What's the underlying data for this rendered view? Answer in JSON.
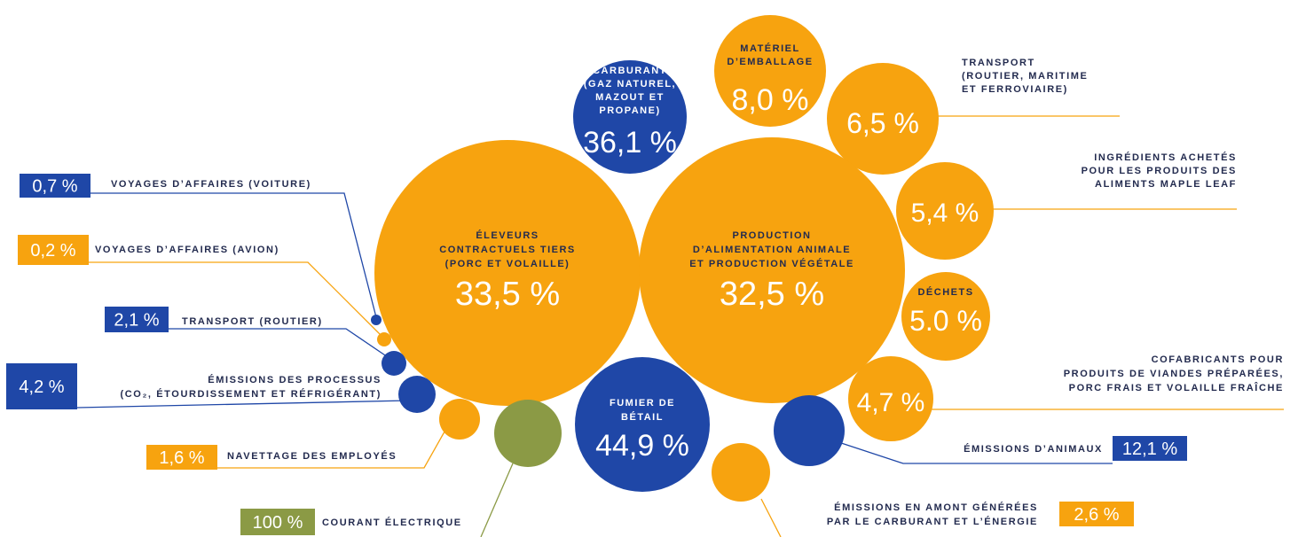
{
  "colors": {
    "orange": "#f7a30f",
    "blue": "#1f47a7",
    "olive": "#8b9a45",
    "text": "#232b4f"
  },
  "chart_data": {
    "type": "bubble",
    "bubbles": [
      {
        "id": "carburant",
        "label": "CARBURANT (GAZ NATUREL, MAZOUT ET PROPANE)",
        "value": 36.1,
        "value_text": "36,1 %",
        "color": "blue"
      },
      {
        "id": "emballage",
        "label": "MATÉRIEL D’EMBALLAGE",
        "value": 8.0,
        "value_text": "8,0 %",
        "color": "orange"
      },
      {
        "id": "transport_mult",
        "label": "TRANSPORT (ROUTIER, MARITIME ET FERROVIAIRE)",
        "value": 6.5,
        "value_text": "6,5 %",
        "color": "orange"
      },
      {
        "id": "ingredients",
        "label": "INGRÉDIENTS ACHETÉS POUR LES PRODUITS DES ALIMENTS MAPLE LEAF",
        "value": 5.4,
        "value_text": "5,4 %",
        "color": "orange"
      },
      {
        "id": "eleveurs",
        "label": "ÉLEVEURS CONTRACTUELS TIERS (PORC ET VOLAILLE)",
        "value": 33.5,
        "value_text": "33,5 %",
        "color": "orange"
      },
      {
        "id": "production",
        "label": "PRODUCTION D’ALIMENTATION ANIMALE ET PRODUCTION VÉGÉTALE",
        "value": 32.5,
        "value_text": "32,5 %",
        "color": "orange"
      },
      {
        "id": "dechets",
        "label": "DÉCHETS",
        "value": 5.0,
        "value_text": "5.0 %",
        "color": "orange"
      },
      {
        "id": "cofabricants",
        "label": "COFABRICANTS POUR PRODUITS DE VIANDES PRÉPARÉES, PORC FRAIS ET VOLAILLE FRAÎCHE",
        "value": 4.7,
        "value_text": "4,7 %",
        "color": "orange"
      },
      {
        "id": "fumier",
        "label": "FUMIER DE BÉTAIL",
        "value": 44.9,
        "value_text": "44,9 %",
        "color": "blue"
      },
      {
        "id": "animaux",
        "label": "ÉMISSIONS D’ANIMAUX",
        "value": 12.1,
        "value_text": "12,1 %",
        "color": "blue"
      },
      {
        "id": "amont",
        "label": "ÉMISSIONS EN AMONT GÉNÉRÉES PAR LE CARBURANT ET L’ÉNERGIE",
        "value": 2.6,
        "value_text": "2,6 %",
        "color": "orange"
      },
      {
        "id": "courant",
        "label": "COURANT ÉLECTRIQUE",
        "value": 100,
        "value_text": "100 %",
        "color": "olive"
      },
      {
        "id": "navettage",
        "label": "NAVETTAGE DES EMPLOYÉS",
        "value": 1.6,
        "value_text": "1,6 %",
        "color": "orange"
      },
      {
        "id": "processus",
        "label": "ÉMISSIONS DES PROCESSUS (CO₂, ÉTOURDISSEMENT ET RÉFRIGÉRANT)",
        "value": 4.2,
        "value_text": "4,2 %",
        "color": "blue"
      },
      {
        "id": "routier",
        "label": "TRANSPORT (ROUTIER)",
        "value": 2.1,
        "value_text": "2,1 %",
        "color": "blue"
      },
      {
        "id": "avion",
        "label": "VOYAGES D’AFFAIRES (AVION)",
        "value": 0.2,
        "value_text": "0,2 %",
        "color": "orange"
      },
      {
        "id": "voiture",
        "label": "VOYAGES D’AFFAIRES (VOITURE)",
        "value": 0.7,
        "value_text": "0,7 %",
        "color": "blue"
      }
    ],
    "label_lines": {
      "carburant": [
        "CARBURANT",
        "(GAZ NATUREL,",
        "MAZOUT ET",
        "PROPANE)"
      ],
      "emballage": [
        "MATÉRIEL",
        "D’EMBALLAGE"
      ],
      "transport_mult": [
        "TRANSPORT",
        "(ROUTIER, MARITIME",
        "ET FERROVIAIRE)"
      ],
      "ingredients": [
        "INGRÉDIENTS ACHETÉS",
        "POUR LES PRODUITS DES",
        "ALIMENTS MAPLE LEAF"
      ],
      "eleveurs": [
        "ÉLEVEURS",
        "CONTRACTUELS TIERS",
        "(PORC ET VOLAILLE)"
      ],
      "production": [
        "PRODUCTION",
        "D’ALIMENTATION ANIMALE",
        "ET PRODUCTION VÉGÉTALE"
      ],
      "dechets": [
        "DÉCHETS"
      ],
      "cofabricants": [
        "COFABRICANTS POUR",
        "PRODUITS DE VIANDES PRÉPARÉES,",
        "PORC FRAIS ET VOLAILLE FRAÎCHE"
      ],
      "fumier": [
        "FUMIER DE",
        "BÉTAIL"
      ],
      "animaux": [
        "ÉMISSIONS D’ANIMAUX"
      ],
      "amont": [
        "ÉMISSIONS EN AMONT GÉNÉRÉES",
        "PAR LE CARBURANT ET L’ÉNERGIE"
      ],
      "courant": [
        "COURANT ÉLECTRIQUE"
      ],
      "navettage": [
        "NAVETTAGE DES EMPLOYÉS"
      ],
      "processus": [
        "ÉMISSIONS DES PROCESSUS",
        "(CO₂, ÉTOURDISSEMENT ET RÉFRIGÉRANT)"
      ],
      "routier": [
        "TRANSPORT (ROUTIER)"
      ],
      "avion": [
        "VOYAGES D’AFFAIRES (AVION)"
      ],
      "voiture": [
        "VOYAGES D’AFFAIRES (VOITURE)"
      ]
    }
  }
}
